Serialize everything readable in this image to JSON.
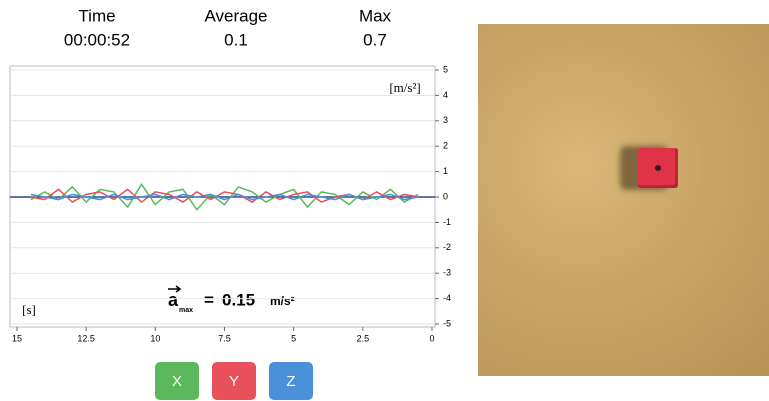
{
  "stats": [
    {
      "label": "Time",
      "value": "00:00:52"
    },
    {
      "label": "Average",
      "value": 0.1
    },
    {
      "label": "Max",
      "value": 0.7
    }
  ],
  "chart_data": {
    "type": "line",
    "y_unit": "[m/s²]",
    "x_unit": "[s]",
    "annotation": {
      "symbol": "a",
      "subscript": "max",
      "equals": "=",
      "value": 0.15,
      "unit": "m/s²"
    },
    "xlim": [
      15,
      0
    ],
    "xticks": [
      15,
      12.5,
      10,
      7.5,
      5,
      2.5,
      0
    ],
    "ylim": [
      -5,
      5
    ],
    "yticks": [
      -5,
      -4,
      -3,
      -2,
      -1,
      0,
      1,
      2,
      3,
      4,
      5
    ],
    "grid": true,
    "x": [
      0.5,
      1,
      1.5,
      2,
      2.5,
      3,
      3.5,
      4,
      4.5,
      5,
      5.5,
      6,
      6.5,
      7,
      7.5,
      8,
      8.5,
      9,
      9.5,
      10,
      10.5,
      11,
      11.5,
      12,
      12.5,
      13,
      13.5,
      14,
      14.5
    ],
    "series": [
      {
        "name": "X",
        "color": "#5cb85c",
        "values": [
          0.1,
          -0.2,
          0.3,
          -0.1,
          0.2,
          -0.3,
          0.1,
          0.2,
          -0.4,
          0.3,
          0.1,
          -0.2,
          0.2,
          0.4,
          -0.3,
          0.1,
          -0.5,
          0.3,
          0.2,
          -0.3,
          0.5,
          -0.4,
          0.2,
          0.3,
          -0.2,
          0.4,
          -0.1,
          0.2,
          -0.1
        ]
      },
      {
        "name": "Y",
        "color": "#e8505b",
        "values": [
          0,
          0.1,
          -0.1,
          0.2,
          -0.1,
          0.1,
          0,
          -0.2,
          0.2,
          0.1,
          -0.1,
          0.2,
          -0.2,
          0.1,
          0.2,
          -0.1,
          0.2,
          -0.2,
          0.1,
          0.2,
          -0.2,
          0.3,
          -0.1,
          0.2,
          0.1,
          -0.2,
          0.3,
          -0.1,
          0
        ]
      },
      {
        "name": "Z",
        "color": "#4a90d9",
        "values": [
          0,
          -0.1,
          0.1,
          0,
          -0.1,
          0.1,
          -0.1,
          0,
          0.1,
          -0.1,
          0.1,
          0,
          -0.1,
          0.1,
          -0.1,
          0.1,
          0,
          0.1,
          -0.1,
          0.1,
          0,
          -0.1,
          0.1,
          -0.1,
          0,
          0.1,
          -0.1,
          0,
          0.1
        ]
      }
    ]
  }
}
